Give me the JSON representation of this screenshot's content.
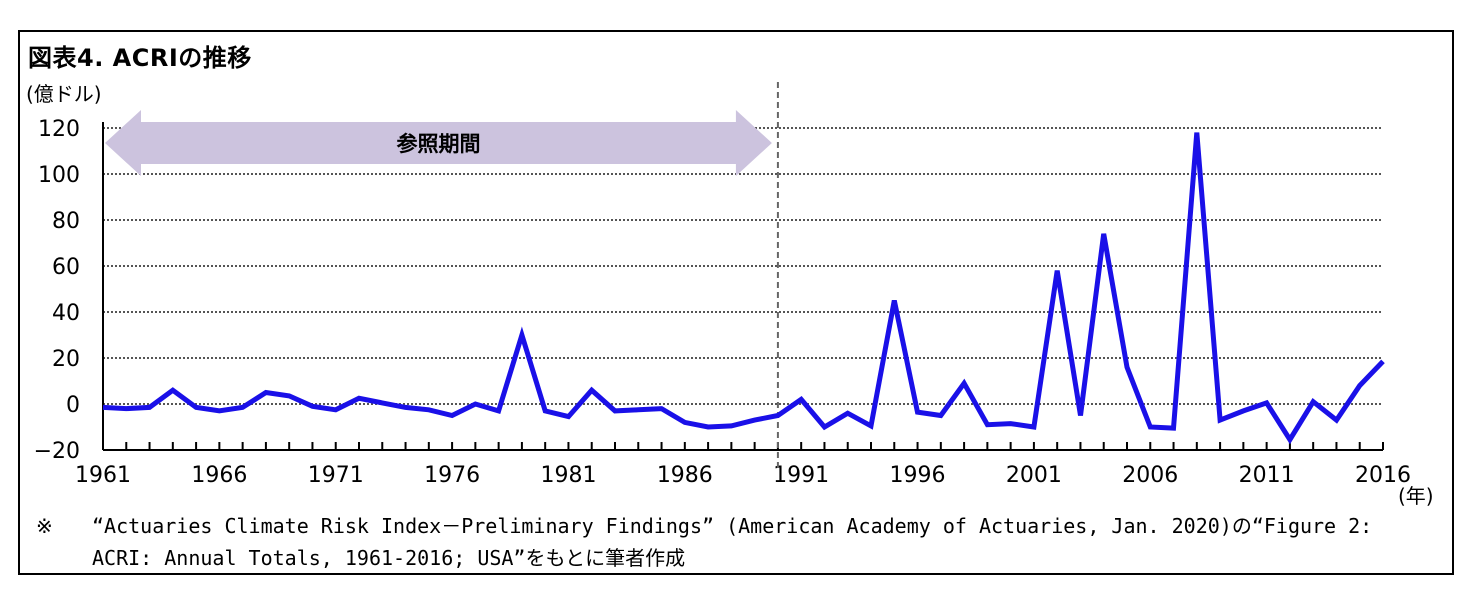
{
  "figure": {
    "title": "図表4. ACRIの推移",
    "source_mark": "※",
    "source_line1": "“Actuaries Climate Risk Index－Preliminary Findings” (American Academy of Actuaries, Jan. 2020)の“Figure 2:",
    "source_line2": "ACRI: Annual Totals, 1961-2016; USA”をもとに筆者作成"
  },
  "chart_data": {
    "type": "line",
    "title": "図表4. ACRIの推移",
    "ylabel": "(億ドル)",
    "xlabel": "(年)",
    "ylim": [
      -20,
      120
    ],
    "yticks": [
      -20,
      0,
      20,
      40,
      60,
      80,
      100,
      120
    ],
    "xlim": [
      1961,
      2016
    ],
    "xticks": [
      1961,
      1966,
      1971,
      1976,
      1981,
      1986,
      1991,
      1996,
      2001,
      2006,
      2011,
      2016
    ],
    "grid": true,
    "color": "#1a10e8",
    "series": [
      {
        "x": [
          1961,
          1962,
          1963,
          1964,
          1965,
          1966,
          1967,
          1968,
          1969,
          1970,
          1971,
          1972,
          1973,
          1974,
          1975,
          1976,
          1977,
          1978,
          1979,
          1980,
          1981,
          1982,
          1983,
          1984,
          1985,
          1986,
          1987,
          1988,
          1989,
          1990,
          1991,
          1992,
          1993,
          1994,
          1995,
          1996,
          1997,
          1998,
          1999,
          2000,
          2001,
          2002,
          2003,
          2004,
          2005,
          2006,
          2007,
          2008,
          2009,
          2010,
          2011,
          2012,
          2013,
          2014,
          2015,
          2016
        ],
        "values": [
          -1.5,
          -2,
          -1.5,
          6,
          -1.5,
          -3,
          -1.5,
          5,
          3.5,
          -1,
          -2.5,
          2.5,
          0.5,
          -1.5,
          -2.5,
          -5,
          0,
          -3,
          30,
          -3,
          -5.5,
          6,
          -3,
          -2.5,
          -2,
          -8,
          -10,
          -9.5,
          -7,
          -5,
          2,
          -10,
          -4,
          -9.5,
          45,
          -3.5,
          -5,
          9,
          -9,
          -8.5,
          -10,
          58,
          -5,
          74,
          16,
          -10,
          -10.5,
          118,
          -7,
          -3,
          0.5,
          -15.5,
          1,
          -7,
          8,
          18.5
        ]
      }
    ],
    "annotations": {
      "reference_period_label": "参照期間",
      "reference_period_range": [
        1961,
        1990
      ],
      "divider_x": 1990
    }
  }
}
